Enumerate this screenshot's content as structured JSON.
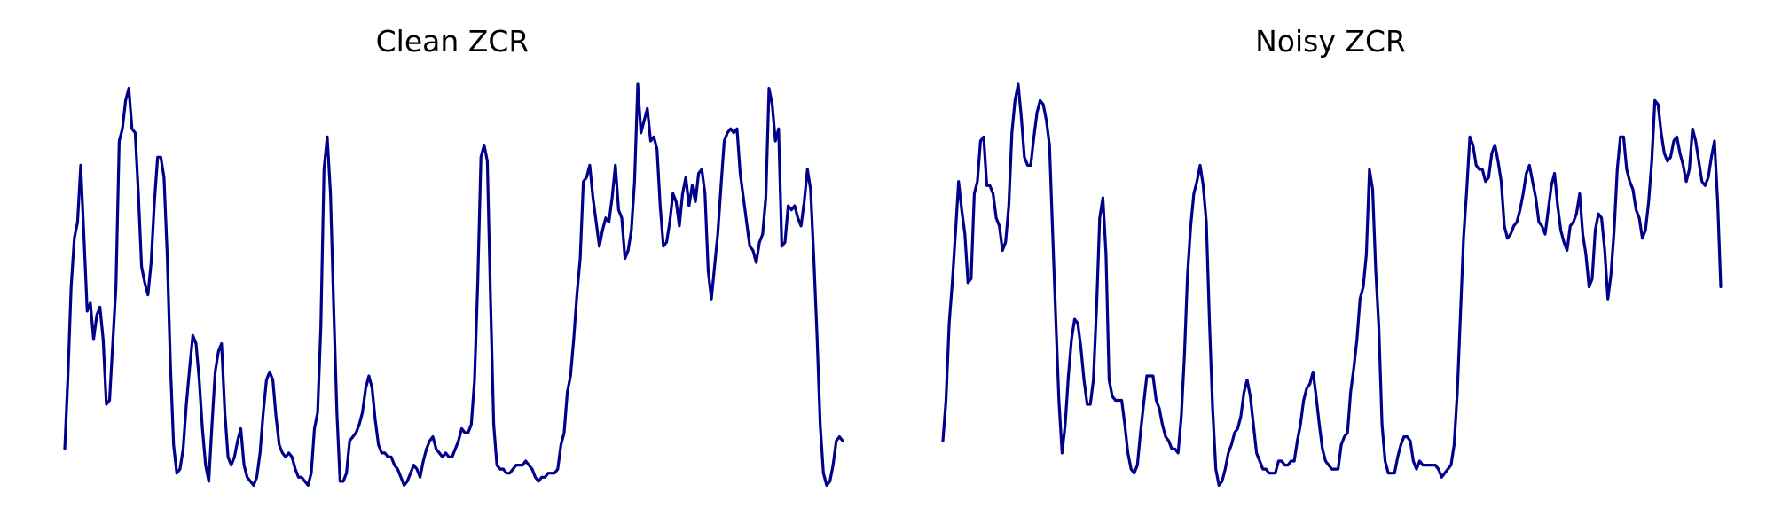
{
  "chart_data": [
    {
      "type": "line",
      "title": "Clean ZCR",
      "xlabel": "",
      "ylabel": "",
      "axes": "off",
      "grid": false,
      "color": "#00008b",
      "ylim": [
        0.0,
        1.0
      ],
      "values": [
        0.1,
        0.28,
        0.5,
        0.62,
        0.66,
        0.8,
        0.62,
        0.44,
        0.46,
        0.37,
        0.43,
        0.45,
        0.37,
        0.21,
        0.22,
        0.36,
        0.5,
        0.86,
        0.89,
        0.96,
        0.99,
        0.89,
        0.88,
        0.73,
        0.55,
        0.51,
        0.48,
        0.56,
        0.71,
        0.82,
        0.82,
        0.77,
        0.58,
        0.31,
        0.11,
        0.04,
        0.05,
        0.1,
        0.21,
        0.3,
        0.38,
        0.36,
        0.27,
        0.15,
        0.06,
        0.02,
        0.16,
        0.29,
        0.34,
        0.36,
        0.19,
        0.08,
        0.06,
        0.08,
        0.12,
        0.15,
        0.06,
        0.03,
        0.02,
        0.01,
        0.03,
        0.09,
        0.19,
        0.27,
        0.29,
        0.27,
        0.18,
        0.11,
        0.09,
        0.08,
        0.09,
        0.08,
        0.05,
        0.03,
        0.03,
        0.02,
        0.01,
        0.04,
        0.15,
        0.19,
        0.4,
        0.79,
        0.87,
        0.73,
        0.45,
        0.19,
        0.02,
        0.02,
        0.04,
        0.12,
        0.13,
        0.14,
        0.16,
        0.19,
        0.25,
        0.28,
        0.25,
        0.17,
        0.11,
        0.09,
        0.09,
        0.08,
        0.08,
        0.06,
        0.05,
        0.03,
        0.01,
        0.02,
        0.04,
        0.06,
        0.05,
        0.03,
        0.07,
        0.1,
        0.12,
        0.13,
        0.1,
        0.09,
        0.08,
        0.09,
        0.08,
        0.08,
        0.1,
        0.12,
        0.15,
        0.14,
        0.14,
        0.16,
        0.27,
        0.51,
        0.82,
        0.85,
        0.81,
        0.47,
        0.16,
        0.06,
        0.05,
        0.05,
        0.04,
        0.04,
        0.05,
        0.06,
        0.06,
        0.06,
        0.07,
        0.06,
        0.05,
        0.03,
        0.02,
        0.03,
        0.03,
        0.04,
        0.04,
        0.04,
        0.05,
        0.11,
        0.14,
        0.24,
        0.28,
        0.37,
        0.48,
        0.57,
        0.76,
        0.77,
        0.8,
        0.72,
        0.66,
        0.6,
        0.64,
        0.67,
        0.66,
        0.72,
        0.8,
        0.69,
        0.67,
        0.57,
        0.59,
        0.64,
        0.76,
        1.0,
        0.88,
        0.91,
        0.94,
        0.86,
        0.87,
        0.84,
        0.7,
        0.6,
        0.61,
        0.66,
        0.73,
        0.71,
        0.65,
        0.73,
        0.77,
        0.7,
        0.75,
        0.71,
        0.78,
        0.79,
        0.73,
        0.54,
        0.47,
        0.55,
        0.63,
        0.75,
        0.86,
        0.88,
        0.89,
        0.88,
        0.89,
        0.78,
        0.72,
        0.66,
        0.6,
        0.59,
        0.56,
        0.61,
        0.63,
        0.72,
        0.99,
        0.95,
        0.86,
        0.89,
        0.6,
        0.61,
        0.7,
        0.69,
        0.7,
        0.67,
        0.65,
        0.71,
        0.79,
        0.74,
        0.57,
        0.38,
        0.16,
        0.04,
        0.01,
        0.02,
        0.06,
        0.12,
        0.13,
        0.12
      ]
    },
    {
      "type": "line",
      "title": "Noisy ZCR",
      "xlabel": "",
      "ylabel": "",
      "axes": "off",
      "grid": false,
      "color": "#00008b",
      "ylim": [
        0.0,
        1.0
      ],
      "values": [
        0.12,
        0.22,
        0.41,
        0.51,
        0.63,
        0.76,
        0.69,
        0.63,
        0.51,
        0.52,
        0.73,
        0.76,
        0.86,
        0.87,
        0.75,
        0.75,
        0.73,
        0.67,
        0.65,
        0.59,
        0.61,
        0.7,
        0.88,
        0.96,
        1.0,
        0.92,
        0.82,
        0.8,
        0.8,
        0.87,
        0.93,
        0.96,
        0.95,
        0.91,
        0.85,
        0.63,
        0.42,
        0.22,
        0.09,
        0.16,
        0.28,
        0.37,
        0.42,
        0.41,
        0.35,
        0.27,
        0.21,
        0.21,
        0.27,
        0.45,
        0.67,
        0.72,
        0.58,
        0.27,
        0.23,
        0.22,
        0.22,
        0.22,
        0.16,
        0.09,
        0.05,
        0.04,
        0.06,
        0.14,
        0.21,
        0.28,
        0.28,
        0.28,
        0.22,
        0.2,
        0.16,
        0.13,
        0.12,
        0.1,
        0.1,
        0.09,
        0.18,
        0.33,
        0.53,
        0.65,
        0.73,
        0.76,
        0.8,
        0.75,
        0.66,
        0.41,
        0.2,
        0.05,
        0.01,
        0.02,
        0.05,
        0.09,
        0.11,
        0.14,
        0.15,
        0.18,
        0.24,
        0.27,
        0.23,
        0.16,
        0.09,
        0.07,
        0.05,
        0.05,
        0.04,
        0.04,
        0.04,
        0.07,
        0.07,
        0.06,
        0.06,
        0.07,
        0.07,
        0.12,
        0.16,
        0.22,
        0.25,
        0.26,
        0.29,
        0.23,
        0.16,
        0.1,
        0.07,
        0.06,
        0.05,
        0.05,
        0.05,
        0.11,
        0.13,
        0.14,
        0.24,
        0.3,
        0.37,
        0.47,
        0.5,
        0.58,
        0.79,
        0.74,
        0.54,
        0.4,
        0.16,
        0.07,
        0.04,
        0.04,
        0.04,
        0.08,
        0.11,
        0.13,
        0.13,
        0.12,
        0.07,
        0.05,
        0.07,
        0.06,
        0.06,
        0.06,
        0.06,
        0.06,
        0.05,
        0.03,
        0.04,
        0.05,
        0.06,
        0.11,
        0.24,
        0.43,
        0.62,
        0.74,
        0.87,
        0.85,
        0.8,
        0.79,
        0.79,
        0.76,
        0.77,
        0.83,
        0.85,
        0.81,
        0.76,
        0.65,
        0.62,
        0.63,
        0.65,
        0.66,
        0.69,
        0.73,
        0.78,
        0.8,
        0.76,
        0.72,
        0.66,
        0.65,
        0.63,
        0.69,
        0.75,
        0.78,
        0.7,
        0.64,
        0.61,
        0.59,
        0.65,
        0.66,
        0.68,
        0.73,
        0.63,
        0.58,
        0.5,
        0.52,
        0.64,
        0.68,
        0.67,
        0.59,
        0.47,
        0.53,
        0.64,
        0.79,
        0.87,
        0.87,
        0.79,
        0.76,
        0.74,
        0.69,
        0.67,
        0.62,
        0.64,
        0.71,
        0.81,
        0.96,
        0.95,
        0.88,
        0.83,
        0.81,
        0.82,
        0.86,
        0.87,
        0.83,
        0.8,
        0.76,
        0.79,
        0.89,
        0.86,
        0.81,
        0.76,
        0.75,
        0.77,
        0.82,
        0.86,
        0.71,
        0.5
      ]
    }
  ]
}
